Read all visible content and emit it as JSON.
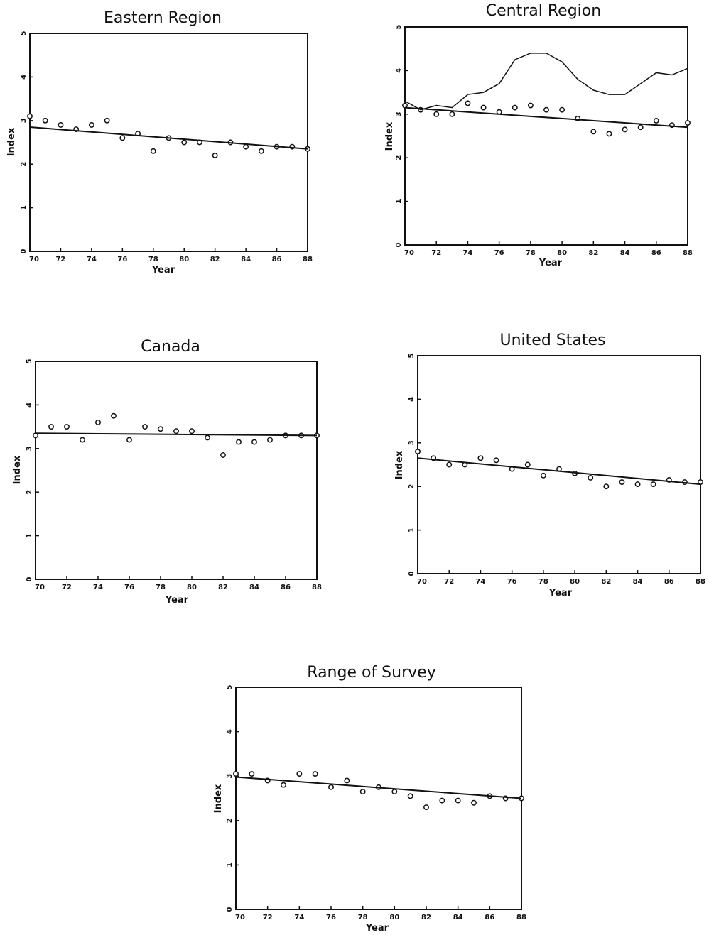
{
  "chart_data": [
    {
      "id": "eastern",
      "type": "scatter",
      "title": "Eastern Region",
      "xlabel": "Year",
      "ylabel": "Index",
      "xlim": [
        70,
        88
      ],
      "ylim": [
        0,
        5
      ],
      "xticks": [
        "70",
        "72",
        "74",
        "76",
        "78",
        "80",
        "82",
        "84",
        "86",
        "88"
      ],
      "yticks": [
        "0",
        "1",
        "2",
        "3",
        "4",
        "5"
      ],
      "series": [
        {
          "kind": "points",
          "x": [
            70,
            71,
            72,
            73,
            74,
            75,
            76,
            77,
            78,
            79,
            80,
            81,
            82,
            83,
            84,
            85,
            86,
            87,
            88
          ],
          "y": [
            3.1,
            3.0,
            2.9,
            2.8,
            2.9,
            3.0,
            2.6,
            2.7,
            2.3,
            2.6,
            2.5,
            2.5,
            2.2,
            2.5,
            2.4,
            2.3,
            2.4,
            2.4,
            2.35
          ]
        },
        {
          "kind": "trend",
          "x": [
            70,
            88
          ],
          "y": [
            2.85,
            2.35
          ]
        }
      ]
    },
    {
      "id": "central",
      "type": "scatter",
      "title": "Central Region",
      "xlabel": "Year",
      "ylabel": "Index",
      "xlim": [
        70,
        88
      ],
      "ylim": [
        0,
        5
      ],
      "xticks": [
        "70",
        "72",
        "74",
        "76",
        "78",
        "80",
        "82",
        "84",
        "86",
        "88"
      ],
      "yticks": [
        "0",
        "1",
        "2",
        "3",
        "4",
        "5"
      ],
      "series": [
        {
          "kind": "points",
          "x": [
            70,
            71,
            72,
            73,
            74,
            75,
            76,
            77,
            78,
            79,
            80,
            81,
            82,
            83,
            84,
            85,
            86,
            87,
            88
          ],
          "y": [
            3.2,
            3.1,
            3.0,
            3.0,
            3.25,
            3.15,
            3.05,
            3.15,
            3.2,
            3.1,
            3.1,
            2.9,
            2.6,
            2.55,
            2.65,
            2.7,
            2.85,
            2.75,
            2.8
          ]
        },
        {
          "kind": "trend",
          "x": [
            70,
            88
          ],
          "y": [
            3.15,
            2.7
          ]
        },
        {
          "kind": "line",
          "x": [
            70,
            71,
            72,
            73,
            74,
            75,
            76,
            77,
            78,
            79,
            80,
            81,
            82,
            83,
            84,
            85,
            86,
            87,
            88
          ],
          "y": [
            3.3,
            3.1,
            3.2,
            3.15,
            3.45,
            3.5,
            3.7,
            4.25,
            4.4,
            4.4,
            4.2,
            3.8,
            3.55,
            3.45,
            3.45,
            3.7,
            3.95,
            3.9,
            4.05
          ]
        }
      ]
    },
    {
      "id": "canada",
      "type": "scatter",
      "title": "Canada",
      "xlabel": "Year",
      "ylabel": "Index",
      "xlim": [
        70,
        88
      ],
      "ylim": [
        0,
        5
      ],
      "xticks": [
        "70",
        "72",
        "74",
        "76",
        "78",
        "80",
        "82",
        "84",
        "86",
        "88"
      ],
      "yticks": [
        "0",
        "1",
        "2",
        "3",
        "4",
        "5"
      ],
      "series": [
        {
          "kind": "points",
          "x": [
            70,
            71,
            72,
            73,
            74,
            75,
            76,
            77,
            78,
            79,
            80,
            81,
            82,
            83,
            84,
            85,
            86,
            87,
            88
          ],
          "y": [
            3.3,
            3.5,
            3.5,
            3.2,
            3.6,
            3.75,
            3.2,
            3.5,
            3.45,
            3.4,
            3.4,
            3.25,
            2.85,
            3.15,
            3.15,
            3.2,
            3.3,
            3.3,
            3.3
          ]
        },
        {
          "kind": "trend",
          "x": [
            70,
            88
          ],
          "y": [
            3.35,
            3.3
          ]
        }
      ]
    },
    {
      "id": "united-states",
      "type": "scatter",
      "title": "United States",
      "xlabel": "Year",
      "ylabel": "Index",
      "xlim": [
        70,
        88
      ],
      "ylim": [
        0,
        5
      ],
      "xticks": [
        "70",
        "72",
        "74",
        "76",
        "78",
        "80",
        "82",
        "84",
        "86",
        "88"
      ],
      "yticks": [
        "0",
        "1",
        "2",
        "3",
        "4",
        "5"
      ],
      "series": [
        {
          "kind": "points",
          "x": [
            70,
            71,
            72,
            73,
            74,
            75,
            76,
            77,
            78,
            79,
            80,
            81,
            82,
            83,
            84,
            85,
            86,
            87,
            88
          ],
          "y": [
            2.8,
            2.65,
            2.5,
            2.5,
            2.65,
            2.6,
            2.4,
            2.5,
            2.25,
            2.4,
            2.3,
            2.2,
            2.0,
            2.1,
            2.05,
            2.05,
            2.15,
            2.1,
            2.1
          ]
        },
        {
          "kind": "trend",
          "x": [
            70,
            88
          ],
          "y": [
            2.65,
            2.05
          ]
        }
      ]
    },
    {
      "id": "range-of-survey",
      "type": "scatter",
      "title": "Range of Survey",
      "xlabel": "Year",
      "ylabel": "Index",
      "xlim": [
        70,
        88
      ],
      "ylim": [
        0,
        5
      ],
      "xticks": [
        "70",
        "72",
        "74",
        "76",
        "78",
        "80",
        "82",
        "84",
        "86",
        "88"
      ],
      "yticks": [
        "0",
        "1",
        "2",
        "3",
        "4",
        "5"
      ],
      "series": [
        {
          "kind": "points",
          "x": [
            70,
            71,
            72,
            73,
            74,
            75,
            76,
            77,
            78,
            79,
            80,
            81,
            82,
            83,
            84,
            85,
            86,
            87,
            88
          ],
          "y": [
            3.05,
            3.05,
            2.9,
            2.8,
            3.05,
            3.05,
            2.75,
            2.9,
            2.65,
            2.75,
            2.65,
            2.55,
            2.3,
            2.45,
            2.45,
            2.4,
            2.55,
            2.5,
            2.5
          ]
        },
        {
          "kind": "trend",
          "x": [
            70,
            88
          ],
          "y": [
            2.98,
            2.5
          ]
        }
      ]
    }
  ]
}
